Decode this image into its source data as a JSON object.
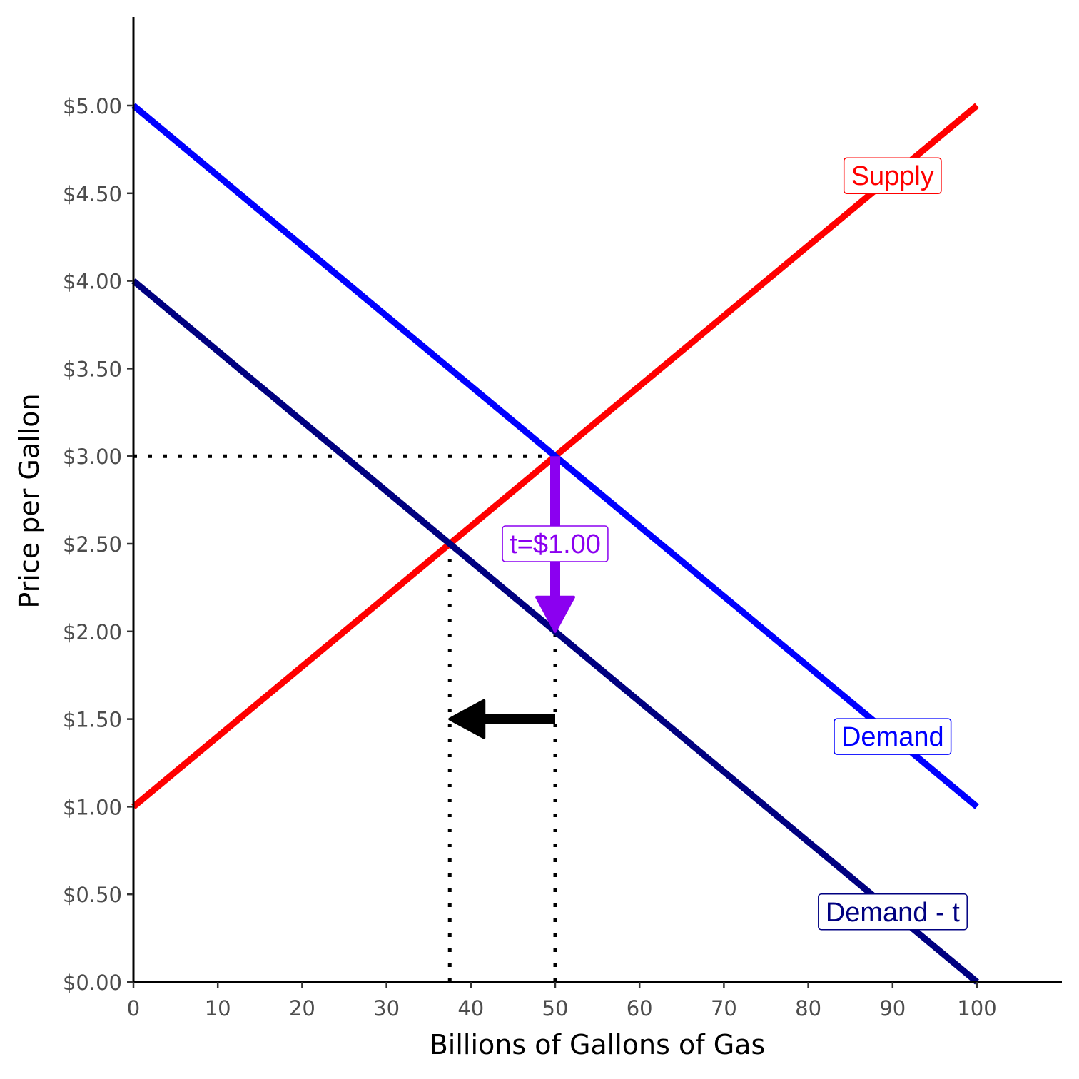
{
  "chart_data": {
    "type": "line",
    "xlabel": "Billions of Gallons of Gas",
    "ylabel": "Price per Gallon",
    "xlim": [
      0,
      110
    ],
    "ylim": [
      0,
      5.5
    ],
    "x_ticks": [
      0,
      10,
      20,
      30,
      40,
      50,
      60,
      70,
      80,
      90,
      100
    ],
    "x_tick_labels": [
      "0",
      "10",
      "20",
      "30",
      "40",
      "50",
      "60",
      "70",
      "80",
      "90",
      "100"
    ],
    "y_ticks": [
      0,
      0.5,
      1,
      1.5,
      2,
      2.5,
      3,
      3.5,
      4,
      4.5,
      5
    ],
    "y_tick_labels": [
      "$0.00",
      "$0.50",
      "$1.00",
      "$1.50",
      "$2.00",
      "$2.50",
      "$3.00",
      "$3.50",
      "$4.00",
      "$4.50",
      "$5.00"
    ],
    "grid": false,
    "series": [
      {
        "name": "Supply",
        "color": "#ff0000",
        "x": [
          0,
          100
        ],
        "y": [
          1,
          5
        ]
      },
      {
        "name": "Demand",
        "color": "#0000ff",
        "x": [
          0,
          100
        ],
        "y": [
          5,
          1
        ]
      },
      {
        "name": "Demand - t",
        "color": "#000080",
        "x": [
          0,
          100
        ],
        "y": [
          4,
          0
        ]
      }
    ],
    "labels": [
      {
        "text": "Supply",
        "x": 90,
        "y": 4.6,
        "color": "#ff0000"
      },
      {
        "text": "Demand",
        "x": 90,
        "y": 1.4,
        "color": "#0000ff"
      },
      {
        "text": "Demand - t",
        "x": 90,
        "y": 0.4,
        "color": "#000080"
      },
      {
        "text": "t=$1.00",
        "x": 50,
        "y": 2.5,
        "color": "#8b00f0"
      }
    ],
    "reference_lines": [
      {
        "x": [
          0,
          50
        ],
        "y": [
          3,
          3
        ],
        "style": "dotted"
      },
      {
        "x": [
          50,
          50
        ],
        "y": [
          0,
          3
        ],
        "style": "dotted"
      },
      {
        "x": [
          37.5,
          37.5
        ],
        "y": [
          0,
          2.5
        ],
        "style": "dotted"
      }
    ],
    "arrows": [
      {
        "from": [
          50,
          3
        ],
        "to": [
          50,
          2
        ],
        "color": "#8b00f0"
      },
      {
        "from": [
          50,
          1.5
        ],
        "to": [
          37.5,
          1.5
        ],
        "color": "#000000"
      }
    ]
  }
}
